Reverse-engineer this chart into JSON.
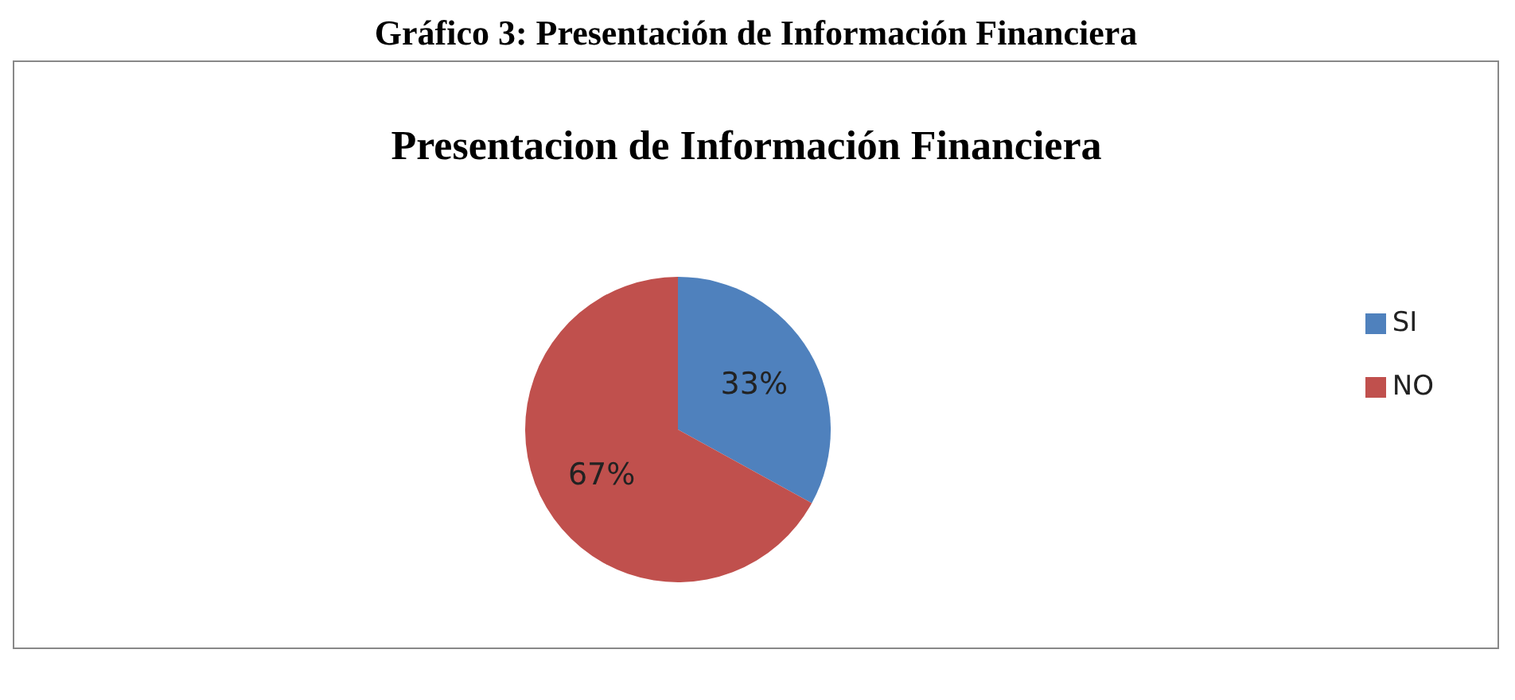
{
  "chart_data": {
    "type": "pie",
    "title": "Gráfico 3: Presentación de Información Financiera",
    "subtitle": "Presentacion de Información Financiera",
    "categories": [
      "SI",
      "NO"
    ],
    "values": [
      33,
      67
    ],
    "colors": [
      "#4f81bd",
      "#c0504d"
    ],
    "value_labels": [
      "33%",
      "67%"
    ],
    "legend": "right"
  }
}
